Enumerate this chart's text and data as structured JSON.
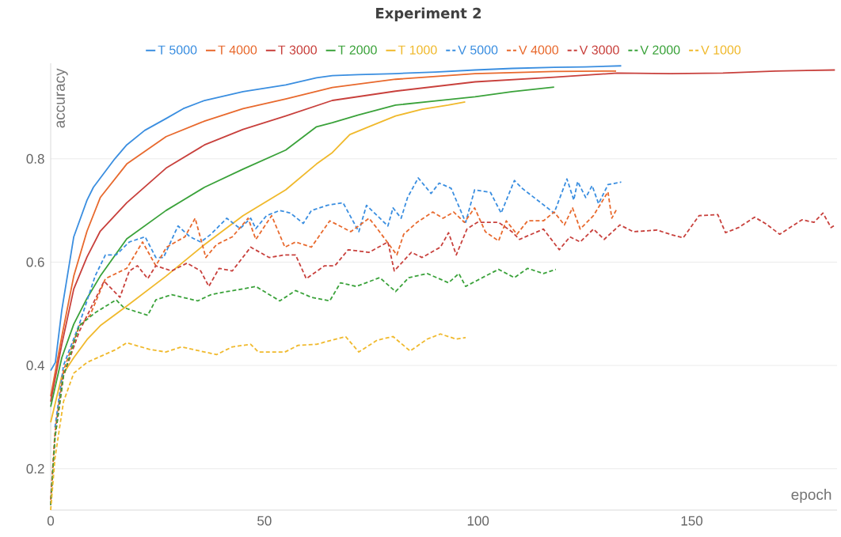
{
  "chart_data": {
    "type": "line",
    "title": "Experiment 2",
    "xlabel": "epoch",
    "ylabel": "accuracy",
    "xlim": [
      0,
      184
    ],
    "ylim": [
      0.12,
      0.985
    ],
    "xticks": [
      0,
      50,
      100,
      150
    ],
    "yticks": [
      0.2,
      0.4,
      0.6,
      0.8
    ],
    "grid": "y",
    "legend": "top",
    "series": [
      {
        "name": "T 5000",
        "color": "#3a8ee0",
        "line_style": "solid",
        "x": [
          0,
          1.1,
          2.6,
          5.4,
          8.5,
          10,
          15,
          17.8,
          22,
          27,
          31,
          36,
          45,
          55,
          62.2,
          65.9,
          72,
          80.7,
          90,
          99.3,
          108,
          117.8,
          125,
          133.5
        ],
        "values": [
          0.39,
          0.406,
          0.507,
          0.649,
          0.72,
          0.745,
          0.8,
          0.827,
          0.855,
          0.878,
          0.897,
          0.913,
          0.93,
          0.943,
          0.957,
          0.961,
          0.963,
          0.965,
          0.968,
          0.972,
          0.975,
          0.977,
          0.978,
          0.98
        ]
      },
      {
        "name": "T 4000",
        "color": "#e8692d",
        "line_style": "solid",
        "x": [
          0,
          2.6,
          5.4,
          8.5,
          11.6,
          17.8,
          27,
          36,
          45,
          55,
          65.9,
          80.7,
          99.3,
          117.8,
          132.3
        ],
        "values": [
          0.34,
          0.456,
          0.573,
          0.66,
          0.725,
          0.79,
          0.843,
          0.873,
          0.897,
          0.916,
          0.938,
          0.954,
          0.965,
          0.969,
          0.97
        ]
      },
      {
        "name": "T 3000",
        "color": "#c8403c",
        "line_style": "solid",
        "x": [
          0,
          2.6,
          5.4,
          8.5,
          11.6,
          17.8,
          27,
          36,
          45,
          55,
          65.9,
          80.7,
          99.3,
          117.8,
          132.6,
          145,
          157.3,
          169.6,
          183.5
        ],
        "values": [
          0.33,
          0.441,
          0.548,
          0.61,
          0.66,
          0.715,
          0.782,
          0.827,
          0.857,
          0.883,
          0.913,
          0.931,
          0.949,
          0.958,
          0.966,
          0.965,
          0.966,
          0.97,
          0.972
        ]
      },
      {
        "name": "T 2000",
        "color": "#3aa23a",
        "line_style": "solid",
        "x": [
          0,
          2.6,
          5.4,
          8.5,
          11.6,
          17.8,
          27,
          36,
          45,
          55,
          62.2,
          65.9,
          72,
          80.7,
          90,
          99.3,
          108,
          117.8
        ],
        "values": [
          0.32,
          0.415,
          0.48,
          0.53,
          0.573,
          0.645,
          0.7,
          0.745,
          0.78,
          0.817,
          0.862,
          0.87,
          0.885,
          0.904,
          0.912,
          0.92,
          0.93,
          0.939
        ]
      },
      {
        "name": "T 1000",
        "color": "#f0b92c",
        "line_style": "solid",
        "x": [
          0,
          2.6,
          5.4,
          8.5,
          11.6,
          17.8,
          27,
          36,
          45,
          55,
          62.2,
          65.9,
          70,
          74.4,
          80.7,
          86.9,
          93,
          97
        ],
        "values": [
          0.29,
          0.38,
          0.415,
          0.45,
          0.477,
          0.515,
          0.573,
          0.634,
          0.69,
          0.74,
          0.79,
          0.812,
          0.847,
          0.862,
          0.883,
          0.896,
          0.904,
          0.91
        ]
      },
      {
        "name": "V 5000",
        "color": "#3a8ee0",
        "line_style": "dashed",
        "x": [
          1,
          3,
          6.7,
          10.4,
          12.8,
          15.3,
          18.4,
          22.1,
          24.6,
          26.4,
          29.8,
          32.6,
          35.1,
          37.5,
          41.2,
          44.3,
          46.8,
          48,
          50.5,
          53.6,
          56.1,
          59.1,
          61,
          64.7,
          68.4,
          72.1,
          73.9,
          78.9,
          80.1,
          82,
          83.5,
          86,
          89,
          90.9,
          93.7,
          97.1,
          99.2,
          102.9,
          105.4,
          108.5,
          110.3,
          117.8,
          120.8,
          122.4,
          123.3,
          125.2,
          126.7,
          128.2,
          130.4,
          133.5
        ],
        "values": [
          0.28,
          0.4,
          0.48,
          0.573,
          0.614,
          0.614,
          0.639,
          0.649,
          0.609,
          0.609,
          0.67,
          0.649,
          0.639,
          0.654,
          0.685,
          0.665,
          0.685,
          0.665,
          0.69,
          0.7,
          0.695,
          0.675,
          0.7,
          0.71,
          0.715,
          0.659,
          0.71,
          0.67,
          0.705,
          0.685,
          0.725,
          0.763,
          0.733,
          0.753,
          0.743,
          0.677,
          0.74,
          0.735,
          0.695,
          0.758,
          0.743,
          0.695,
          0.761,
          0.72,
          0.756,
          0.725,
          0.748,
          0.713,
          0.75,
          0.755
        ]
      },
      {
        "name": "V 4000",
        "color": "#e8692d",
        "line_style": "dashed",
        "x": [
          0,
          1,
          3,
          6.7,
          9.2,
          12.8,
          17.8,
          21.5,
          24.6,
          27.1,
          31.4,
          33.8,
          36.3,
          38.8,
          42.5,
          46.2,
          48,
          51.7,
          54.8,
          57.3,
          61,
          65.3,
          70.2,
          74.5,
          76.4,
          81,
          82.6,
          85.7,
          89.4,
          91.8,
          94.3,
          96.8,
          99.2,
          101.7,
          104.8,
          106.6,
          109.1,
          111.6,
          115.3,
          117.8,
          120.2,
          122.1,
          123.9,
          127,
          130.4,
          131.3,
          132.4
        ],
        "values": [
          0.14,
          0.27,
          0.39,
          0.477,
          0.497,
          0.568,
          0.588,
          0.639,
          0.593,
          0.629,
          0.649,
          0.685,
          0.609,
          0.634,
          0.649,
          0.685,
          0.644,
          0.69,
          0.629,
          0.639,
          0.629,
          0.68,
          0.659,
          0.685,
          0.665,
          0.614,
          0.654,
          0.677,
          0.697,
          0.685,
          0.697,
          0.677,
          0.705,
          0.659,
          0.641,
          0.68,
          0.654,
          0.68,
          0.68,
          0.697,
          0.672,
          0.705,
          0.664,
          0.69,
          0.736,
          0.685,
          0.702
        ]
      },
      {
        "name": "V 3000",
        "color": "#c8403c",
        "line_style": "dashed",
        "x": [
          0,
          1,
          3,
          6.7,
          12.5,
          16.2,
          18.4,
          20.3,
          22.7,
          24.6,
          28.3,
          31.9,
          35.1,
          37,
          39.4,
          42.5,
          46.8,
          51.1,
          54.8,
          57.3,
          59.8,
          64.1,
          66.5,
          69.6,
          74.5,
          78.9,
          80.4,
          84.4,
          86.9,
          91.2,
          93.1,
          94.9,
          97.4,
          99.8,
          104.8,
          107.9,
          109.7,
          115.3,
          119,
          121.5,
          123.9,
          127,
          129.5,
          133.2,
          136.3,
          141.9,
          144.9,
          148,
          151.7,
          156.1,
          157.9,
          161,
          164.7,
          167.2,
          170.6,
          175.8,
          178.6,
          180.7,
          182.6,
          183.7
        ],
        "values": [
          0.13,
          0.26,
          0.38,
          0.466,
          0.563,
          0.532,
          0.583,
          0.593,
          0.568,
          0.593,
          0.583,
          0.598,
          0.583,
          0.553,
          0.588,
          0.583,
          0.629,
          0.609,
          0.614,
          0.614,
          0.568,
          0.593,
          0.593,
          0.624,
          0.619,
          0.639,
          0.583,
          0.619,
          0.609,
          0.629,
          0.657,
          0.614,
          0.664,
          0.677,
          0.677,
          0.659,
          0.644,
          0.664,
          0.624,
          0.649,
          0.639,
          0.664,
          0.644,
          0.672,
          0.659,
          0.662,
          0.654,
          0.647,
          0.69,
          0.692,
          0.657,
          0.667,
          0.687,
          0.675,
          0.654,
          0.682,
          0.677,
          0.695,
          0.667,
          0.673
        ]
      },
      {
        "name": "V 2000",
        "color": "#3aa23a",
        "line_style": "dashed",
        "x": [
          0,
          1,
          3,
          6.7,
          10.4,
          15.3,
          17.1,
          22.7,
          24.6,
          28.3,
          34.4,
          37.5,
          41.2,
          44.9,
          48,
          53.6,
          57.3,
          61,
          65.3,
          67.8,
          71.5,
          77,
          80.7,
          83.8,
          88.1,
          93.1,
          95.5,
          97.1,
          101.7,
          104.8,
          108.5,
          111.6,
          115.3,
          118.2
        ],
        "values": [
          0.13,
          0.26,
          0.38,
          0.477,
          0.502,
          0.527,
          0.512,
          0.497,
          0.527,
          0.537,
          0.525,
          0.537,
          0.543,
          0.548,
          0.553,
          0.525,
          0.545,
          0.532,
          0.525,
          0.56,
          0.553,
          0.57,
          0.543,
          0.57,
          0.578,
          0.56,
          0.578,
          0.553,
          0.573,
          0.586,
          0.57,
          0.588,
          0.578,
          0.586
        ]
      },
      {
        "name": "V 1000",
        "color": "#f0b92c",
        "line_style": "dashed",
        "x": [
          0,
          1,
          3,
          5.4,
          8.5,
          15.3,
          17.8,
          23.2,
          26.9,
          30.6,
          38.8,
          42.5,
          46.8,
          48.6,
          54.8,
          57.9,
          62.2,
          69,
          72.1,
          76.4,
          80.1,
          84.1,
          88.1,
          91.2,
          94.9,
          97.1
        ],
        "values": [
          0.12,
          0.22,
          0.33,
          0.385,
          0.406,
          0.431,
          0.444,
          0.431,
          0.426,
          0.436,
          0.421,
          0.436,
          0.441,
          0.426,
          0.426,
          0.439,
          0.441,
          0.456,
          0.426,
          0.449,
          0.456,
          0.428,
          0.451,
          0.461,
          0.451,
          0.454
        ]
      }
    ]
  }
}
